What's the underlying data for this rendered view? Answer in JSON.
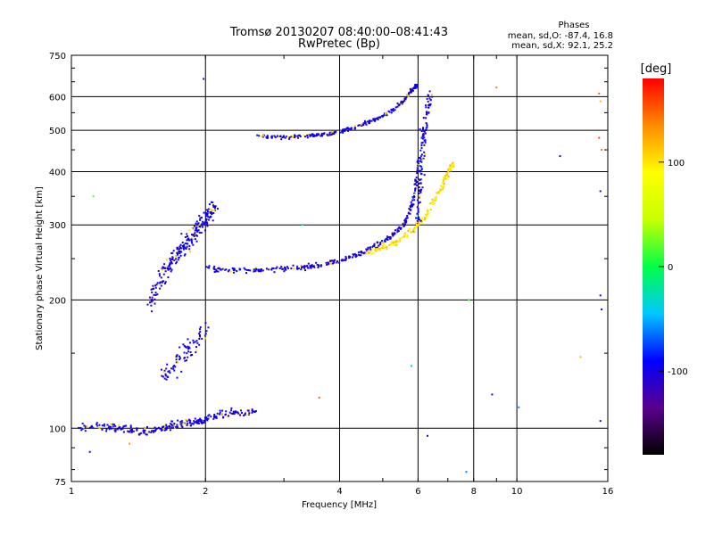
{
  "chart_data": {
    "type": "scatter",
    "title": "Tromsø 20130207 08:40:00–08:41:43",
    "subtitle": "RwPretec (Bp)",
    "xlabel": "Frequency [MHz]",
    "ylabel": "Stationary phase Virtual Height [km]",
    "x_scale": "log",
    "y_scale": "log",
    "xlim": [
      1,
      16
    ],
    "ylim": [
      75,
      750
    ],
    "x_ticks": [
      1,
      2,
      4,
      6,
      8,
      10,
      16
    ],
    "y_ticks": [
      75,
      100,
      200,
      300,
      400,
      500,
      600,
      750
    ],
    "grid": true,
    "stats_header": "Phases",
    "stats_lines": [
      "mean, sd,O: -87.4, 16.8",
      "mean, sd,X:  92.1, 25.2"
    ],
    "colorbar": {
      "label": "[deg]",
      "range": [
        -180,
        180
      ],
      "ticks": [
        -100,
        0,
        100
      ],
      "colors": [
        "#000000",
        "#5a008c",
        "#0000ff",
        "#00c8ff",
        "#00ff46",
        "#c8ff00",
        "#ffff00",
        "#ff8c00",
        "#ff0000"
      ]
    },
    "series": [
      {
        "traces": [
          {
            "x": [
              1.05,
              1.15,
              1.25,
              1.35,
              1.45,
              1.55,
              1.65,
              1.75,
              1.85,
              1.95,
              2.05,
              2.2,
              2.4,
              2.6
            ],
            "y": [
              100,
              101,
              100,
              99,
              98,
              99,
              101,
              102,
              103,
              104,
              106,
              108,
              109,
              110
            ],
            "spread": 0.03
          },
          {
            "x": [
              1.5,
              1.55,
              1.6,
              1.65,
              1.7,
              1.75,
              1.8,
              1.85,
              1.9,
              1.95,
              2.0,
              2.05,
              2.1
            ],
            "y": [
              195,
              210,
              225,
              240,
              250,
              260,
              270,
              280,
              290,
              300,
              310,
              320,
              330
            ],
            "spread": 0.07
          },
          {
            "x": [
              1.6,
              1.7,
              1.8,
              1.9,
              2.0
            ],
            "y": [
              130,
              140,
              150,
              160,
              170
            ],
            "spread": 0.08
          },
          {
            "x": [
              2.0,
              2.2,
              2.5,
              2.8,
              3.1,
              3.4,
              3.7,
              4.0,
              4.3,
              4.6,
              4.9,
              5.2,
              5.5,
              5.7,
              5.85,
              5.95,
              6.0
            ],
            "y": [
              237,
              236,
              235,
              236,
              237,
              239,
              242,
              248,
              254,
              262,
              270,
              280,
              295,
              315,
              340,
              380,
              430
            ],
            "spread": 0.02
          },
          {
            "x": [
              2.6,
              2.9,
              3.2,
              3.5,
              3.8,
              4.1,
              4.4,
              4.7,
              5.0,
              5.3,
              5.6,
              5.8,
              6.0
            ],
            "y": [
              485,
              482,
              483,
              487,
              492,
              500,
              512,
              525,
              540,
              560,
              590,
              620,
              640
            ],
            "spread": 0.015
          },
          {
            "x": [
              6.0,
              6.05,
              6.1,
              6.15,
              6.2,
              6.3,
              6.4
            ],
            "y": [
              300,
              350,
              400,
              450,
              500,
              550,
              600
            ],
            "spread": 0.05
          },
          {
            "x": [
              4.6,
              5.0,
              5.4,
              5.8,
              6.2,
              6.5,
              6.8,
              7.0,
              7.2
            ],
            "y": [
              258,
              265,
              275,
              290,
              310,
              340,
              370,
              400,
              420
            ],
            "spread": 0.025
          }
        ],
        "scattered_points": [
          {
            "x": 1.12,
            "y": 350,
            "phase": 20
          },
          {
            "x": 1.1,
            "y": 88,
            "phase": -110
          },
          {
            "x": 1.35,
            "y": 92,
            "phase": 130
          },
          {
            "x": 1.98,
            "y": 660,
            "phase": -120
          },
          {
            "x": 3.3,
            "y": 300,
            "phase": -20
          },
          {
            "x": 3.6,
            "y": 118,
            "phase": 150
          },
          {
            "x": 5.8,
            "y": 140,
            "phase": -40
          },
          {
            "x": 6.3,
            "y": 96,
            "phase": -110
          },
          {
            "x": 7.7,
            "y": 79,
            "phase": -60
          },
          {
            "x": 7.8,
            "y": 200,
            "phase": 10
          },
          {
            "x": 8.8,
            "y": 120,
            "phase": -110
          },
          {
            "x": 9.0,
            "y": 630,
            "phase": 140
          },
          {
            "x": 10.1,
            "y": 112,
            "phase": -60
          },
          {
            "x": 12.5,
            "y": 435,
            "phase": -90
          },
          {
            "x": 13.9,
            "y": 147,
            "phase": 120
          },
          {
            "x": 15.3,
            "y": 610,
            "phase": 150
          },
          {
            "x": 15.4,
            "y": 585,
            "phase": 120
          },
          {
            "x": 15.3,
            "y": 480,
            "phase": 160
          },
          {
            "x": 15.5,
            "y": 450,
            "phase": 140
          },
          {
            "x": 15.4,
            "y": 360,
            "phase": -110
          },
          {
            "x": 15.4,
            "y": 205,
            "phase": -100
          },
          {
            "x": 15.5,
            "y": 190,
            "phase": -110
          },
          {
            "x": 15.4,
            "y": 104,
            "phase": -100
          }
        ]
      }
    ]
  }
}
